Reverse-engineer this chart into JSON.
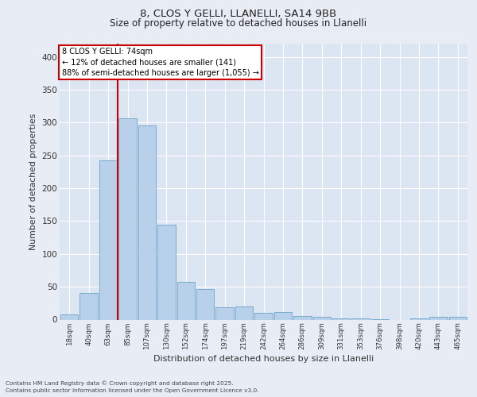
{
  "title1": "8, CLOS Y GELLI, LLANELLI, SA14 9BB",
  "title2": "Size of property relative to detached houses in Llanelli",
  "xlabel": "Distribution of detached houses by size in Llanelli",
  "ylabel": "Number of detached properties",
  "bar_color": "#b8d0ea",
  "bar_edge_color": "#6ba3c8",
  "background_color": "#e8edf5",
  "plot_bg_color": "#dce5f2",
  "grid_color": "#ffffff",
  "categories": [
    "18sqm",
    "40sqm",
    "63sqm",
    "85sqm",
    "107sqm",
    "130sqm",
    "152sqm",
    "174sqm",
    "197sqm",
    "219sqm",
    "242sqm",
    "264sqm",
    "286sqm",
    "309sqm",
    "331sqm",
    "353sqm",
    "376sqm",
    "398sqm",
    "420sqm",
    "443sqm",
    "465sqm"
  ],
  "values": [
    8,
    40,
    242,
    306,
    295,
    145,
    57,
    47,
    19,
    20,
    10,
    11,
    5,
    4,
    2,
    2,
    1,
    0,
    2,
    4,
    4
  ],
  "annotation_title": "8 CLOS Y GELLI: 74sqm",
  "annotation_line1": "← 12% of detached houses are smaller (141)",
  "annotation_line2": "88% of semi-detached houses are larger (1,055) →",
  "annotation_box_color": "#cc0000",
  "vline_x_index": 2.5,
  "vline_color": "#cc0000",
  "ylim": [
    0,
    420
  ],
  "yticks": [
    0,
    50,
    100,
    150,
    200,
    250,
    300,
    350,
    400
  ],
  "footer1": "Contains HM Land Registry data © Crown copyright and database right 2025.",
  "footer2": "Contains public sector information licensed under the Open Government Licence v3.0."
}
